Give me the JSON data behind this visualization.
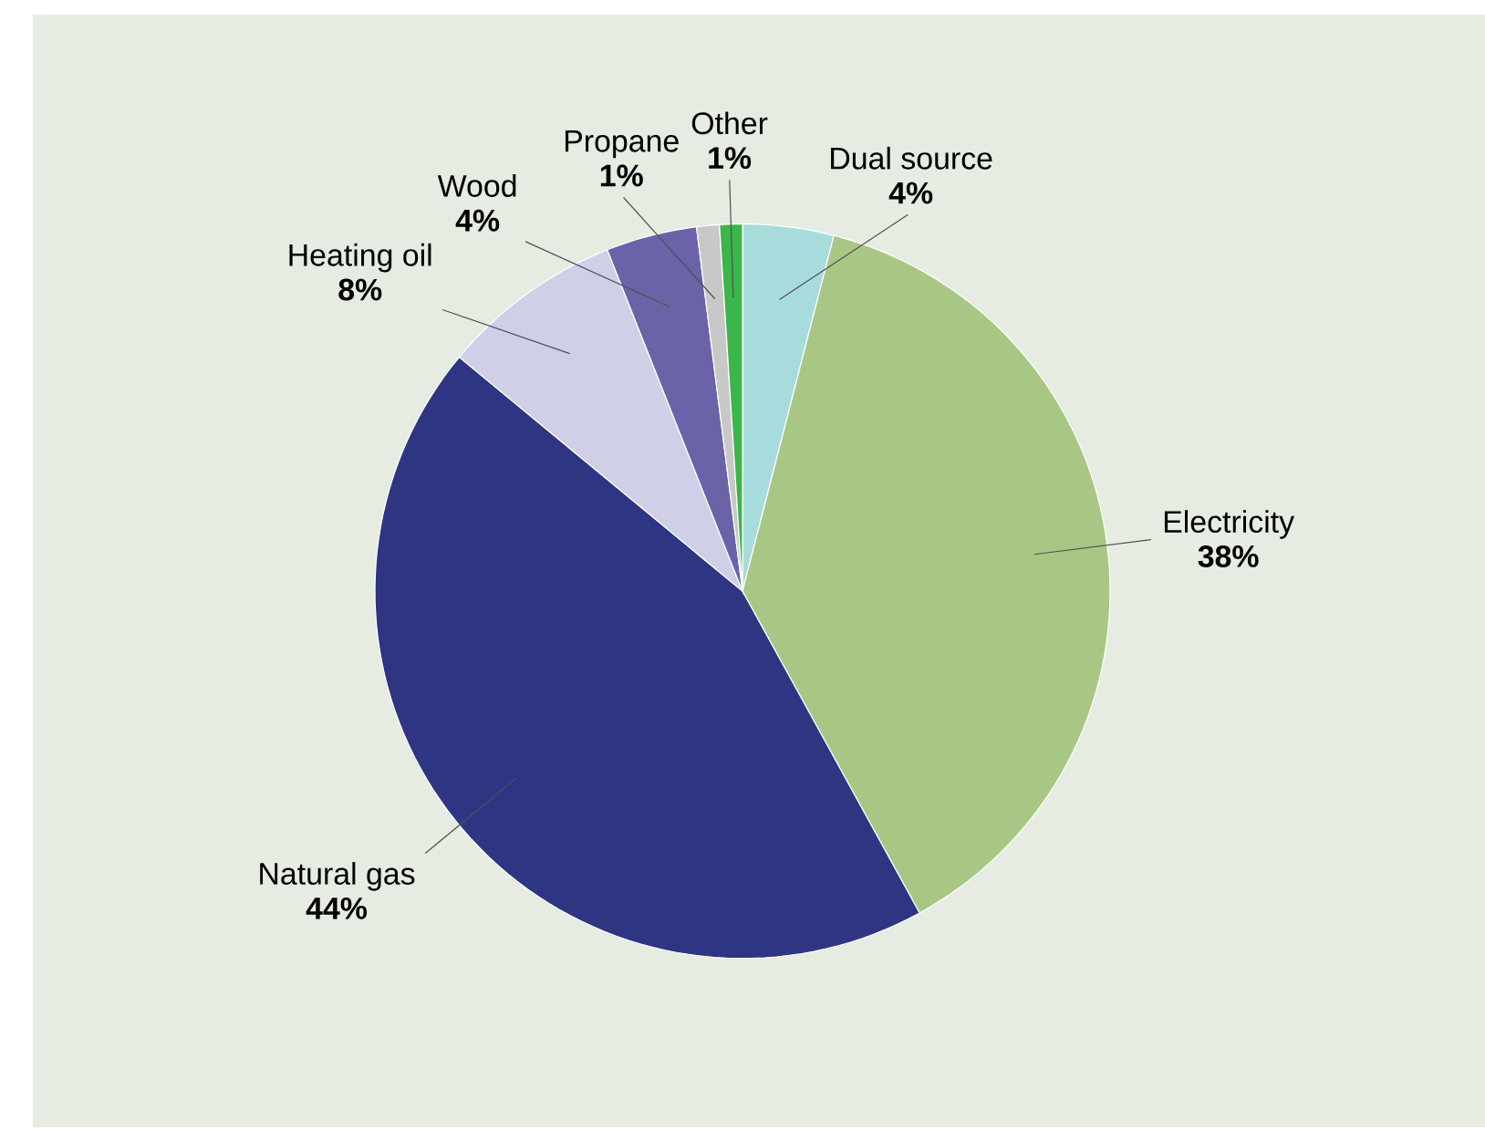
{
  "chart_data": {
    "type": "pie",
    "categories": [
      "Dual source",
      "Electricity",
      "Natural gas",
      "Heating oil",
      "Wood",
      "Propane",
      "Other"
    ],
    "values": [
      4,
      38,
      44,
      8,
      4,
      1,
      1
    ],
    "colors": [
      "#a8dcdc",
      "#a9c784",
      "#2e3583",
      "#d0cfe8",
      "#6a63a8",
      "#c8c8c8",
      "#3cb54a"
    ],
    "value_labels": [
      "4%",
      "38%",
      "44%",
      "8%",
      "4%",
      "1%",
      "1%"
    ]
  }
}
